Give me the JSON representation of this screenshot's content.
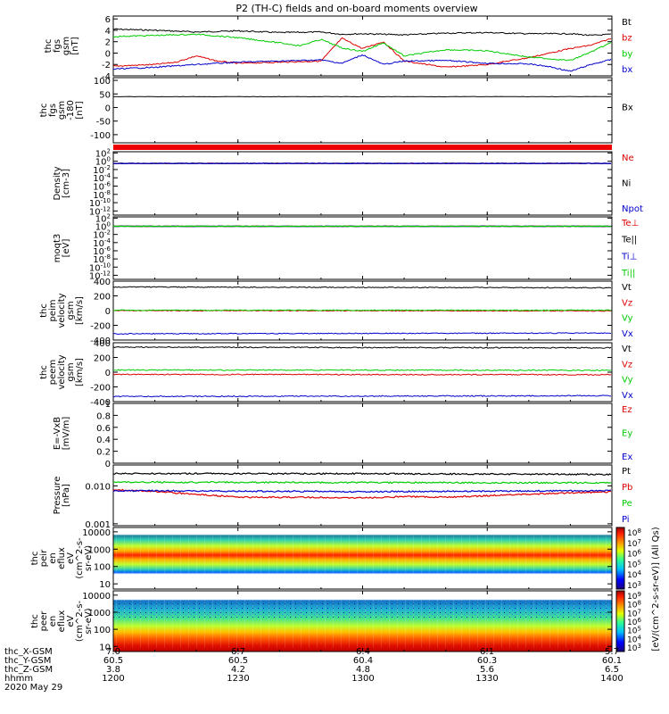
{
  "title": "P2 (TH-C) fields and on-board moments overview",
  "chart_data": [
    {
      "type": "line",
      "panel": "fgs",
      "ylabel": [
        "thc",
        "fgs",
        "gsm",
        "[nT]"
      ],
      "ylim": [
        -4,
        6.5
      ],
      "yticks": [
        -4,
        -2,
        0,
        2,
        4,
        6
      ],
      "series": [
        {
          "name": "Bt",
          "color": "#000000",
          "x": [
            1200,
            1210,
            1220,
            1225,
            1230,
            1240,
            1250,
            1255,
            1300,
            1310,
            1320,
            1330,
            1340,
            1350,
            1355,
            1400
          ],
          "y": [
            4.2,
            4.0,
            3.7,
            3.8,
            3.9,
            3.6,
            3.7,
            3.3,
            3.4,
            3.2,
            3.5,
            3.6,
            3.4,
            3.4,
            3.1,
            3.3
          ]
        },
        {
          "name": "bz",
          "color": "#dd0000",
          "x": [
            1200,
            1210,
            1215,
            1220,
            1225,
            1230,
            1240,
            1250,
            1255,
            1300,
            1305,
            1310,
            1320,
            1330,
            1340,
            1350,
            1355,
            1400
          ],
          "y": [
            -2.3,
            -2.0,
            -1.6,
            -0.5,
            -1.4,
            -1.8,
            -1.6,
            -1.4,
            2.6,
            0.8,
            2.0,
            -1.4,
            -2.5,
            -2.0,
            -0.8,
            0.8,
            1.4,
            2.6
          ]
        },
        {
          "name": "by",
          "color": "#00cc00",
          "x": [
            1200,
            1210,
            1220,
            1230,
            1240,
            1245,
            1250,
            1255,
            1300,
            1305,
            1310,
            1320,
            1330,
            1340,
            1350,
            1355,
            1400
          ],
          "y": [
            2.9,
            3.1,
            3.3,
            2.7,
            1.8,
            1.3,
            2.4,
            0.9,
            0.3,
            1.8,
            -0.5,
            0.6,
            0.4,
            -0.7,
            -1.3,
            0.2,
            1.9
          ]
        },
        {
          "name": "bx",
          "color": "#0000cc",
          "x": [
            1200,
            1210,
            1220,
            1230,
            1240,
            1250,
            1255,
            1300,
            1305,
            1310,
            1320,
            1330,
            1340,
            1345,
            1350,
            1355,
            1400
          ],
          "y": [
            -2.8,
            -2.5,
            -2.0,
            -1.6,
            -1.4,
            -1.2,
            -1.8,
            -0.3,
            -2.0,
            -1.4,
            -1.3,
            -1.8,
            -1.9,
            -2.4,
            -3.2,
            -2.0,
            -1.1
          ]
        }
      ]
    },
    {
      "type": "line",
      "panel": "fgs-scale",
      "ylabel": [
        "thc",
        "fgs",
        "gsm",
        "-180",
        "[nT]"
      ],
      "ylim": [
        -130,
        110
      ],
      "yticks": [
        -100,
        -50,
        0,
        50,
        100
      ],
      "series": [
        {
          "name": "Bx",
          "color": "#000000",
          "x": [
            1200,
            1300,
            1400
          ],
          "y": [
            40,
            40,
            40
          ]
        }
      ]
    },
    {
      "type": "line",
      "panel": "density",
      "scale": "log",
      "ylabel": [
        "Density",
        "[cm-3]"
      ],
      "yticks": [
        "10^2",
        "10^0",
        "10^-2",
        "10^-4",
        "10^-6",
        "10^-8",
        "10^-10",
        "10^-12"
      ],
      "series": [
        {
          "name": "Ne",
          "color": "#dd0000",
          "x": [
            1200,
            1400
          ],
          "y": [
            0.3,
            0.3
          ]
        },
        {
          "name": "Ni",
          "color": "#000000",
          "x": [
            1200,
            1400
          ],
          "y": [
            0.3,
            0.3
          ]
        },
        {
          "name": "Npot",
          "color": "#0000cc",
          "x": [
            1200,
            1400
          ],
          "y": [
            0.3,
            0.3
          ]
        }
      ]
    },
    {
      "type": "line",
      "panel": "temperature",
      "scale": "log",
      "ylabel": [
        "moqt3",
        "[eV]"
      ],
      "yticks": [
        "10^2",
        "10^0",
        "10^-2",
        "10^-4",
        "10^-6",
        "10^-8",
        "10^-10",
        "10^-12"
      ],
      "series": [
        {
          "name": "Te⊥",
          "color": "#dd0000",
          "x": [
            1200,
            1400
          ],
          "y": [
            1,
            1
          ]
        },
        {
          "name": "Te||",
          "color": "#000000",
          "x": [
            1200,
            1400
          ],
          "y": [
            1,
            1
          ]
        },
        {
          "name": "Ti⊥",
          "color": "#0000cc",
          "x": [
            1200,
            1400
          ],
          "y": [
            1,
            1
          ]
        },
        {
          "name": "Ti||",
          "color": "#00cc00",
          "x": [
            1200,
            1400
          ],
          "y": [
            1,
            1
          ]
        }
      ]
    },
    {
      "type": "line",
      "panel": "peim-velocity",
      "ylabel": [
        "thc",
        "peim",
        "velocity",
        "gsm",
        "[km/s]"
      ],
      "ylim": [
        -400,
        400
      ],
      "yticks": [
        -400,
        -200,
        0,
        200,
        400
      ],
      "series": [
        {
          "name": "Vt",
          "color": "#000000",
          "x": [
            1200,
            1400
          ],
          "y": [
            320,
            310
          ]
        },
        {
          "name": "Vz",
          "color": "#dd0000",
          "x": [
            1200,
            1400
          ],
          "y": [
            0,
            -5
          ]
        },
        {
          "name": "Vy",
          "color": "#00cc00",
          "x": [
            1200,
            1400
          ],
          "y": [
            5,
            5
          ]
        },
        {
          "name": "Vx",
          "color": "#0000cc",
          "x": [
            1200,
            1400
          ],
          "y": [
            -315,
            -305
          ]
        }
      ]
    },
    {
      "type": "line",
      "panel": "peem-velocity",
      "ylabel": [
        "thc",
        "peem",
        "velocity",
        "gsm",
        "[km/s]"
      ],
      "ylim": [
        -400,
        400
      ],
      "yticks": [
        -400,
        -200,
        0,
        200,
        400
      ],
      "series": [
        {
          "name": "Vt",
          "color": "#000000",
          "x": [
            1200,
            1400
          ],
          "y": [
            340,
            330
          ]
        },
        {
          "name": "Vz",
          "color": "#dd0000",
          "x": [
            1200,
            1400
          ],
          "y": [
            -30,
            -35
          ]
        },
        {
          "name": "Vy",
          "color": "#00cc00",
          "x": [
            1200,
            1400
          ],
          "y": [
            30,
            25
          ]
        },
        {
          "name": "Vx",
          "color": "#0000cc",
          "x": [
            1200,
            1400
          ],
          "y": [
            -330,
            -320
          ]
        }
      ]
    },
    {
      "type": "line",
      "panel": "efield",
      "ylabel": [
        "E=-VxB",
        "[mV/m]"
      ],
      "ylim": [
        0,
        1
      ],
      "yticks": [
        0.0,
        0.2,
        0.4,
        0.6,
        0.8,
        1.0
      ],
      "series": [
        {
          "name": "Ez",
          "color": "#dd0000",
          "x": [],
          "y": []
        },
        {
          "name": "Ey",
          "color": "#00cc00",
          "x": [],
          "y": []
        },
        {
          "name": "Ex",
          "color": "#0000cc",
          "x": [],
          "y": []
        }
      ]
    },
    {
      "type": "line",
      "panel": "pressure",
      "scale": "log",
      "ylabel": [
        "Pressure",
        "[nPa]"
      ],
      "yticks": [
        "0.010",
        "0.001"
      ],
      "series": [
        {
          "name": "Pt",
          "color": "#000000",
          "x": [
            1200,
            1300,
            1400
          ],
          "y": [
            0.021,
            0.021,
            0.02
          ]
        },
        {
          "name": "Pb",
          "color": "#dd0000",
          "x": [
            1200,
            1230,
            1245,
            1300,
            1310,
            1320,
            1340,
            1400
          ],
          "y": [
            0.008,
            0.005,
            0.005,
            0.0048,
            0.0052,
            0.005,
            0.006,
            0.007
          ]
        },
        {
          "name": "Pe",
          "color": "#00cc00",
          "x": [
            1200,
            1400
          ],
          "y": [
            0.0125,
            0.012
          ]
        },
        {
          "name": "Pi",
          "color": "#0000cc",
          "x": [
            1200,
            1300,
            1400
          ],
          "y": [
            0.0075,
            0.007,
            0.0075
          ]
        }
      ]
    },
    {
      "type": "heatmap",
      "panel": "peir-energy-flux",
      "ylabel": [
        "thc",
        "peir",
        "en",
        "eflux",
        "eV",
        "(cm^2-s-",
        "sr-eV)"
      ],
      "yticks": [
        10000,
        1000,
        100,
        10
      ],
      "colorbar_ticks": [
        "10^8",
        "10^7",
        "10^6",
        "10^5",
        "10^4",
        "10^3"
      ],
      "colorbar_label": "[eV/(cm^2-s-sr-eV)] (All Qs)"
    },
    {
      "type": "heatmap",
      "panel": "peer-energy-flux",
      "ylabel": [
        "thc",
        "peer",
        "en",
        "eflux",
        "eV",
        "(cm^2-s-",
        "sr-eV)"
      ],
      "yticks": [
        10000,
        1000,
        100,
        10
      ],
      "colorbar_ticks": [
        "10^9",
        "10^8",
        "10^7",
        "10^6",
        "10^5",
        "10^4",
        "10^3"
      ],
      "colorbar_label": "[eV/(cm^2-s-sr-eV)]"
    }
  ],
  "x_axis": {
    "rows": [
      {
        "label": "thc_X-GSM",
        "values": [
          "7.0",
          "6.7",
          "6.4",
          "6.1",
          "5.7"
        ]
      },
      {
        "label": "thc_Y-GSM",
        "values": [
          "60.5",
          "60.5",
          "60.4",
          "60.3",
          "60.1"
        ]
      },
      {
        "label": "thc_Z-GSM",
        "values": [
          "3.8",
          "4.2",
          "4.8",
          "5.6",
          "6.5"
        ]
      },
      {
        "label": "hhmm",
        "values": [
          "1200",
          "1230",
          "1300",
          "1330",
          "1400"
        ]
      }
    ],
    "date": "2020 May 29"
  },
  "colors": {
    "black": "#000000",
    "red": "#dd0000",
    "green": "#00cc00",
    "blue": "#0000cc"
  }
}
